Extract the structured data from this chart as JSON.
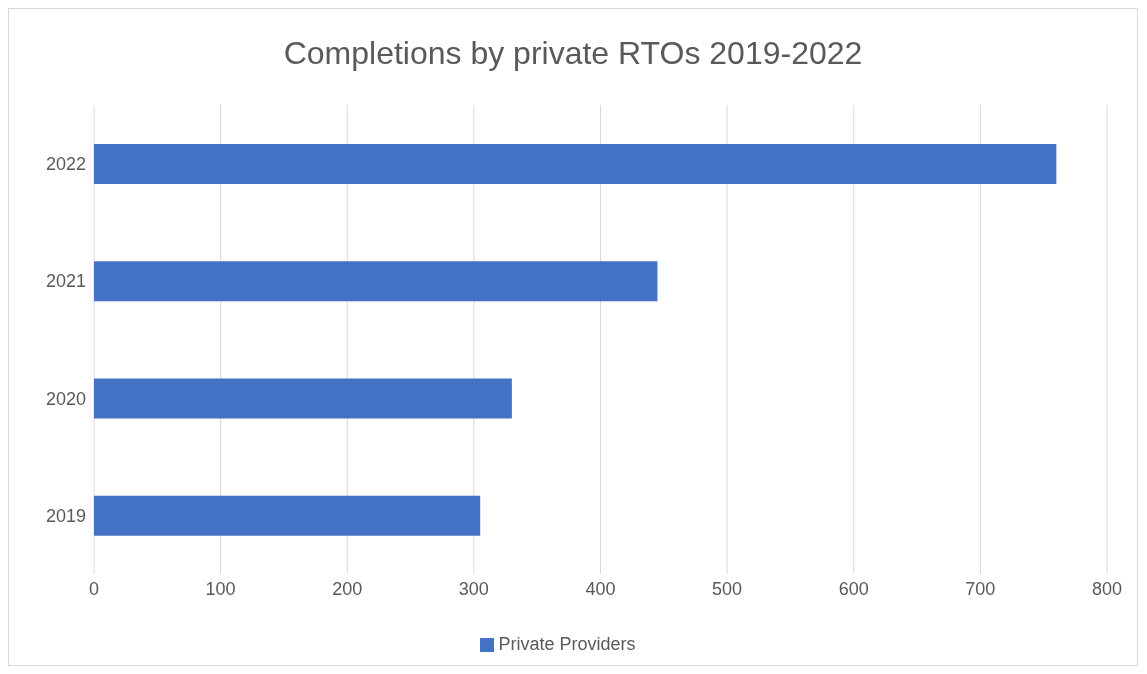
{
  "chart_data": {
    "type": "bar",
    "orientation": "horizontal",
    "title": "Completions by private RTOs  2019-2022",
    "categories": [
      "2022",
      "2021",
      "2020",
      "2019"
    ],
    "series": [
      {
        "name": "Private Providers",
        "color": "#4472c4",
        "values": [
          760,
          445,
          330,
          305
        ]
      }
    ],
    "xlim": [
      0,
      800
    ],
    "xticks": [
      0,
      100,
      200,
      300,
      400,
      500,
      600,
      700,
      800
    ],
    "grid": "x",
    "legend": "bottom"
  }
}
